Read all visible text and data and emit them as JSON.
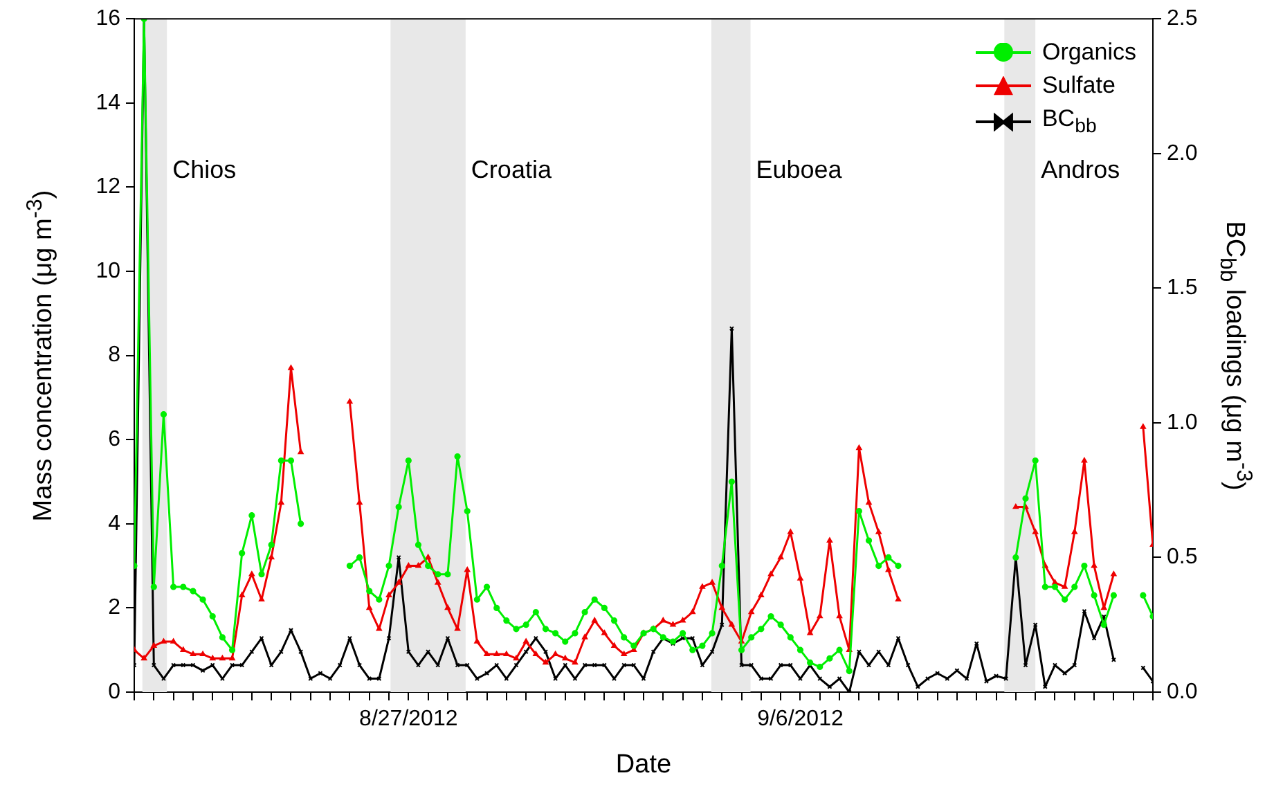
{
  "chart_data": {
    "type": "line",
    "xlabel": "Date",
    "ylabel": "Mass concentration (μg m$^{-3}$)",
    "y2label": "BC$_{bb}$ loadings (μg m$^{-3}$)",
    "x": [
      "2012-08-20T00:00",
      "2012-08-20T06:00",
      "2012-08-20T12:00",
      "2012-08-20T18:00",
      "2012-08-21T00:00",
      "2012-08-21T06:00",
      "2012-08-21T12:00",
      "2012-08-21T18:00",
      "2012-08-22T00:00",
      "2012-08-22T06:00",
      "2012-08-22T12:00",
      "2012-08-22T18:00",
      "2012-08-23T00:00",
      "2012-08-23T06:00",
      "2012-08-23T12:00",
      "2012-08-23T18:00",
      "2012-08-24T00:00",
      "2012-08-24T06:00",
      "2012-08-24T12:00",
      "2012-08-24T18:00",
      "2012-08-25T00:00",
      "2012-08-25T06:00",
      "2012-08-25T12:00",
      "2012-08-25T18:00",
      "2012-08-26T00:00",
      "2012-08-26T06:00",
      "2012-08-26T12:00",
      "2012-08-26T18:00",
      "2012-08-27T00:00",
      "2012-08-27T06:00",
      "2012-08-27T12:00",
      "2012-08-27T18:00",
      "2012-08-28T00:00",
      "2012-08-28T06:00",
      "2012-08-28T12:00",
      "2012-08-28T18:00",
      "2012-08-29T00:00",
      "2012-08-29T06:00",
      "2012-08-29T12:00",
      "2012-08-29T18:00",
      "2012-08-30T00:00",
      "2012-08-30T06:00",
      "2012-08-30T12:00",
      "2012-08-30T18:00",
      "2012-08-31T00:00",
      "2012-08-31T06:00",
      "2012-08-31T12:00",
      "2012-08-31T18:00",
      "2012-09-01T00:00",
      "2012-09-01T06:00",
      "2012-09-01T12:00",
      "2012-09-01T18:00",
      "2012-09-02T00:00",
      "2012-09-02T06:00",
      "2012-09-02T12:00",
      "2012-09-02T18:00",
      "2012-09-03T00:00",
      "2012-09-03T06:00",
      "2012-09-03T12:00",
      "2012-09-03T18:00",
      "2012-09-04T00:00",
      "2012-09-04T06:00",
      "2012-09-04T12:00",
      "2012-09-04T18:00",
      "2012-09-05T00:00",
      "2012-09-05T06:00",
      "2012-09-05T12:00",
      "2012-09-05T18:00",
      "2012-09-06T00:00",
      "2012-09-06T06:00",
      "2012-09-06T12:00",
      "2012-09-06T18:00",
      "2012-09-07T00:00",
      "2012-09-07T06:00",
      "2012-09-07T12:00",
      "2012-09-07T18:00",
      "2012-09-08T00:00",
      "2012-09-08T06:00",
      "2012-09-08T12:00",
      "2012-09-08T18:00",
      "2012-09-09T00:00",
      "2012-09-09T06:00",
      "2012-09-09T12:00",
      "2012-09-09T18:00",
      "2012-09-10T00:00",
      "2012-09-10T06:00",
      "2012-09-10T12:00",
      "2012-09-10T18:00",
      "2012-09-11T00:00",
      "2012-09-11T06:00",
      "2012-09-11T12:00",
      "2012-09-11T18:00",
      "2012-09-12T00:00",
      "2012-09-12T06:00",
      "2012-09-12T12:00",
      "2012-09-12T18:00",
      "2012-09-13T00:00",
      "2012-09-13T06:00",
      "2012-09-13T12:00",
      "2012-09-13T18:00",
      "2012-09-14T00:00",
      "2012-09-14T06:00",
      "2012-09-14T12:00",
      "2012-09-14T18:00",
      "2012-09-15T00:00"
    ],
    "series": [
      {
        "name": "Organics",
        "color": "#00ee00",
        "marker": "circle",
        "values": [
          3.0,
          16,
          2.5,
          6.6,
          2.5,
          2.5,
          2.4,
          2.2,
          1.8,
          1.3,
          1.0,
          3.3,
          4.2,
          2.8,
          3.5,
          5.5,
          5.5,
          4.0,
          null,
          null,
          null,
          null,
          3.0,
          3.2,
          2.4,
          2.2,
          3.0,
          4.4,
          5.5,
          3.5,
          3.0,
          2.8,
          2.8,
          5.6,
          4.3,
          2.2,
          2.5,
          2.0,
          1.7,
          1.5,
          1.6,
          1.9,
          1.5,
          1.4,
          1.2,
          1.4,
          1.9,
          2.2,
          2.0,
          1.7,
          1.3,
          1.1,
          1.4,
          1.5,
          1.3,
          1.2,
          1.4,
          1.0,
          1.1,
          1.4,
          3.0,
          5.0,
          1.0,
          1.3,
          1.5,
          1.8,
          1.6,
          1.3,
          1.0,
          0.7,
          0.6,
          0.8,
          1.0,
          0.5,
          4.3,
          3.6,
          3.0,
          3.2,
          3.0,
          null,
          null,
          null,
          null,
          null,
          null,
          null,
          null,
          null,
          null,
          null,
          3.2,
          4.6,
          5.5,
          2.5,
          2.5,
          2.2,
          2.5,
          3.0,
          2.3,
          1.6,
          2.3,
          null,
          null,
          2.3,
          1.8
        ]
      },
      {
        "name": "Sulfate",
        "color": "#ee0000",
        "marker": "triangle",
        "values": [
          1.0,
          0.8,
          1.1,
          1.2,
          1.2,
          1.0,
          0.9,
          0.9,
          0.8,
          0.8,
          0.8,
          2.3,
          2.8,
          2.2,
          3.2,
          4.5,
          7.7,
          5.7,
          null,
          null,
          null,
          null,
          6.9,
          4.5,
          2.0,
          1.5,
          2.3,
          2.6,
          3.0,
          3.0,
          3.2,
          2.6,
          2.0,
          1.5,
          2.9,
          1.2,
          0.9,
          0.9,
          0.9,
          0.8,
          1.2,
          0.9,
          0.7,
          0.9,
          0.8,
          0.7,
          1.3,
          1.7,
          1.4,
          1.1,
          0.9,
          1.0,
          1.4,
          1.5,
          1.7,
          1.6,
          1.7,
          1.9,
          2.5,
          2.6,
          2.0,
          1.6,
          1.2,
          1.9,
          2.3,
          2.8,
          3.2,
          3.8,
          2.7,
          1.4,
          1.8,
          3.6,
          1.8,
          1.0,
          5.8,
          4.5,
          3.8,
          2.9,
          2.2,
          null,
          null,
          null,
          null,
          null,
          null,
          null,
          null,
          null,
          null,
          null,
          4.4,
          4.4,
          3.8,
          3.0,
          2.6,
          2.5,
          3.8,
          5.5,
          3.0,
          2.0,
          2.8,
          null,
          null,
          6.3,
          3.5
        ]
      },
      {
        "name": "BC$_{bb}$",
        "color": "#000000",
        "marker": "cross",
        "axis": "y2",
        "values": [
          0.1,
          2.5,
          0.1,
          0.05,
          0.1,
          0.1,
          0.1,
          0.08,
          0.1,
          0.05,
          0.1,
          0.1,
          0.15,
          0.2,
          0.1,
          0.15,
          0.23,
          0.15,
          0.05,
          0.07,
          0.05,
          0.1,
          0.2,
          0.1,
          0.05,
          0.05,
          0.2,
          0.5,
          0.15,
          0.1,
          0.15,
          0.1,
          0.2,
          0.1,
          0.1,
          0.05,
          0.07,
          0.1,
          0.05,
          0.1,
          0.15,
          0.2,
          0.15,
          0.05,
          0.1,
          0.05,
          0.1,
          0.1,
          0.1,
          0.05,
          0.1,
          0.1,
          0.05,
          0.15,
          0.2,
          0.18,
          0.2,
          0.2,
          0.1,
          0.15,
          0.25,
          1.35,
          0.1,
          0.1,
          0.05,
          0.05,
          0.1,
          0.1,
          0.05,
          0.1,
          0.05,
          0.02,
          0.05,
          0.0,
          0.15,
          0.1,
          0.15,
          0.1,
          0.2,
          0.1,
          0.02,
          0.05,
          0.07,
          0.05,
          0.08,
          0.05,
          0.18,
          0.04,
          0.06,
          0.05,
          0.5,
          0.1,
          0.25,
          0.02,
          0.1,
          0.07,
          0.1,
          0.3,
          0.2,
          0.28,
          0.12,
          null,
          null,
          0.09,
          0.04
        ]
      }
    ],
    "xlim": [
      "2012-08-20",
      "2012-09-15"
    ],
    "xticks": [
      {
        "value": "2012-08-20T00:00",
        "label": null
      },
      {
        "value": "2012-08-20T12:00",
        "label": null
      },
      {
        "value": "2012-08-21T00:00",
        "label": null
      },
      {
        "value": "2012-08-21T12:00",
        "label": null
      },
      {
        "value": "2012-08-22T00:00",
        "label": null
      },
      {
        "value": "2012-08-22T12:00",
        "label": null
      },
      {
        "value": "2012-08-23T00:00",
        "label": null
      },
      {
        "value": "2012-08-23T12:00",
        "label": null
      },
      {
        "value": "2012-08-24T00:00",
        "label": null
      },
      {
        "value": "2012-08-24T12:00",
        "label": null
      },
      {
        "value": "2012-08-25T00:00",
        "label": null
      },
      {
        "value": "2012-08-25T12:00",
        "label": null
      },
      {
        "value": "2012-08-26T00:00",
        "label": null
      },
      {
        "value": "2012-08-26T12:00",
        "label": null
      },
      {
        "value": "2012-08-27T00:00",
        "label": "8/27/2012"
      },
      {
        "value": "2012-08-27T12:00",
        "label": null
      },
      {
        "value": "2012-08-28T00:00",
        "label": null
      },
      {
        "value": "2012-08-28T12:00",
        "label": null
      },
      {
        "value": "2012-08-29T00:00",
        "label": null
      },
      {
        "value": "2012-08-29T12:00",
        "label": null
      },
      {
        "value": "2012-08-30T00:00",
        "label": null
      },
      {
        "value": "2012-08-30T12:00",
        "label": null
      },
      {
        "value": "2012-08-31T00:00",
        "label": null
      },
      {
        "value": "2012-08-31T12:00",
        "label": null
      },
      {
        "value": "2012-09-01T00:00",
        "label": null
      },
      {
        "value": "2012-09-01T12:00",
        "label": null
      },
      {
        "value": "2012-09-02T00:00",
        "label": null
      },
      {
        "value": "2012-09-02T12:00",
        "label": null
      },
      {
        "value": "2012-09-03T00:00",
        "label": null
      },
      {
        "value": "2012-09-03T12:00",
        "label": null
      },
      {
        "value": "2012-09-04T00:00",
        "label": null
      },
      {
        "value": "2012-09-04T12:00",
        "label": null
      },
      {
        "value": "2012-09-05T00:00",
        "label": null
      },
      {
        "value": "2012-09-05T12:00",
        "label": null
      },
      {
        "value": "2012-09-06T00:00",
        "label": "9/6/2012"
      },
      {
        "value": "2012-09-06T12:00",
        "label": null
      },
      {
        "value": "2012-09-07T00:00",
        "label": null
      },
      {
        "value": "2012-09-07T12:00",
        "label": null
      },
      {
        "value": "2012-09-08T00:00",
        "label": null
      },
      {
        "value": "2012-09-08T12:00",
        "label": null
      },
      {
        "value": "2012-09-09T00:00",
        "label": null
      },
      {
        "value": "2012-09-09T12:00",
        "label": null
      },
      {
        "value": "2012-09-10T00:00",
        "label": null
      },
      {
        "value": "2012-09-10T12:00",
        "label": null
      },
      {
        "value": "2012-09-11T00:00",
        "label": null
      },
      {
        "value": "2012-09-11T12:00",
        "label": null
      },
      {
        "value": "2012-09-12T00:00",
        "label": null
      },
      {
        "value": "2012-09-12T12:00",
        "label": null
      },
      {
        "value": "2012-09-13T00:00",
        "label": null
      },
      {
        "value": "2012-09-13T12:00",
        "label": null
      },
      {
        "value": "2012-09-14T00:00",
        "label": null
      },
      {
        "value": "2012-09-14T12:00",
        "label": null
      },
      {
        "value": "2012-09-15T00:00",
        "label": null
      }
    ],
    "ylim": [
      0,
      16
    ],
    "yticks": [
      0,
      2,
      4,
      6,
      8,
      10,
      12,
      14,
      16
    ],
    "y2lim": [
      0,
      2.5
    ],
    "y2ticks": [
      {
        "value": 0,
        "label": "0.0"
      },
      {
        "value": 0.5,
        "label": "0.5"
      },
      {
        "value": 1,
        "label": "1.0"
      },
      {
        "value": 1.5,
        "label": "1.5"
      },
      {
        "value": 2,
        "label": "2.0"
      },
      {
        "value": 2.5,
        "label": "2.5"
      }
    ],
    "bands": [
      {
        "axis": "x",
        "from": "2012-08-20T05:00",
        "to": "2012-08-20T20:00",
        "label": "Chios",
        "color": "#e8e8e8"
      },
      {
        "axis": "x",
        "from": "2012-08-26T13:00",
        "to": "2012-08-28T11:00",
        "label": "Croatia",
        "color": "#e8e8e8"
      },
      {
        "axis": "x",
        "from": "2012-09-03T17:30",
        "to": "2012-09-04T17:30",
        "label": "Euboea",
        "color": "#e8e8e8"
      },
      {
        "axis": "x",
        "from": "2012-09-11T05:00",
        "to": "2012-09-12T00:00",
        "label": "Andros",
        "color": "#e8e8e8"
      }
    ],
    "grid": false,
    "legend": "top right",
    "line_style": "solid"
  }
}
